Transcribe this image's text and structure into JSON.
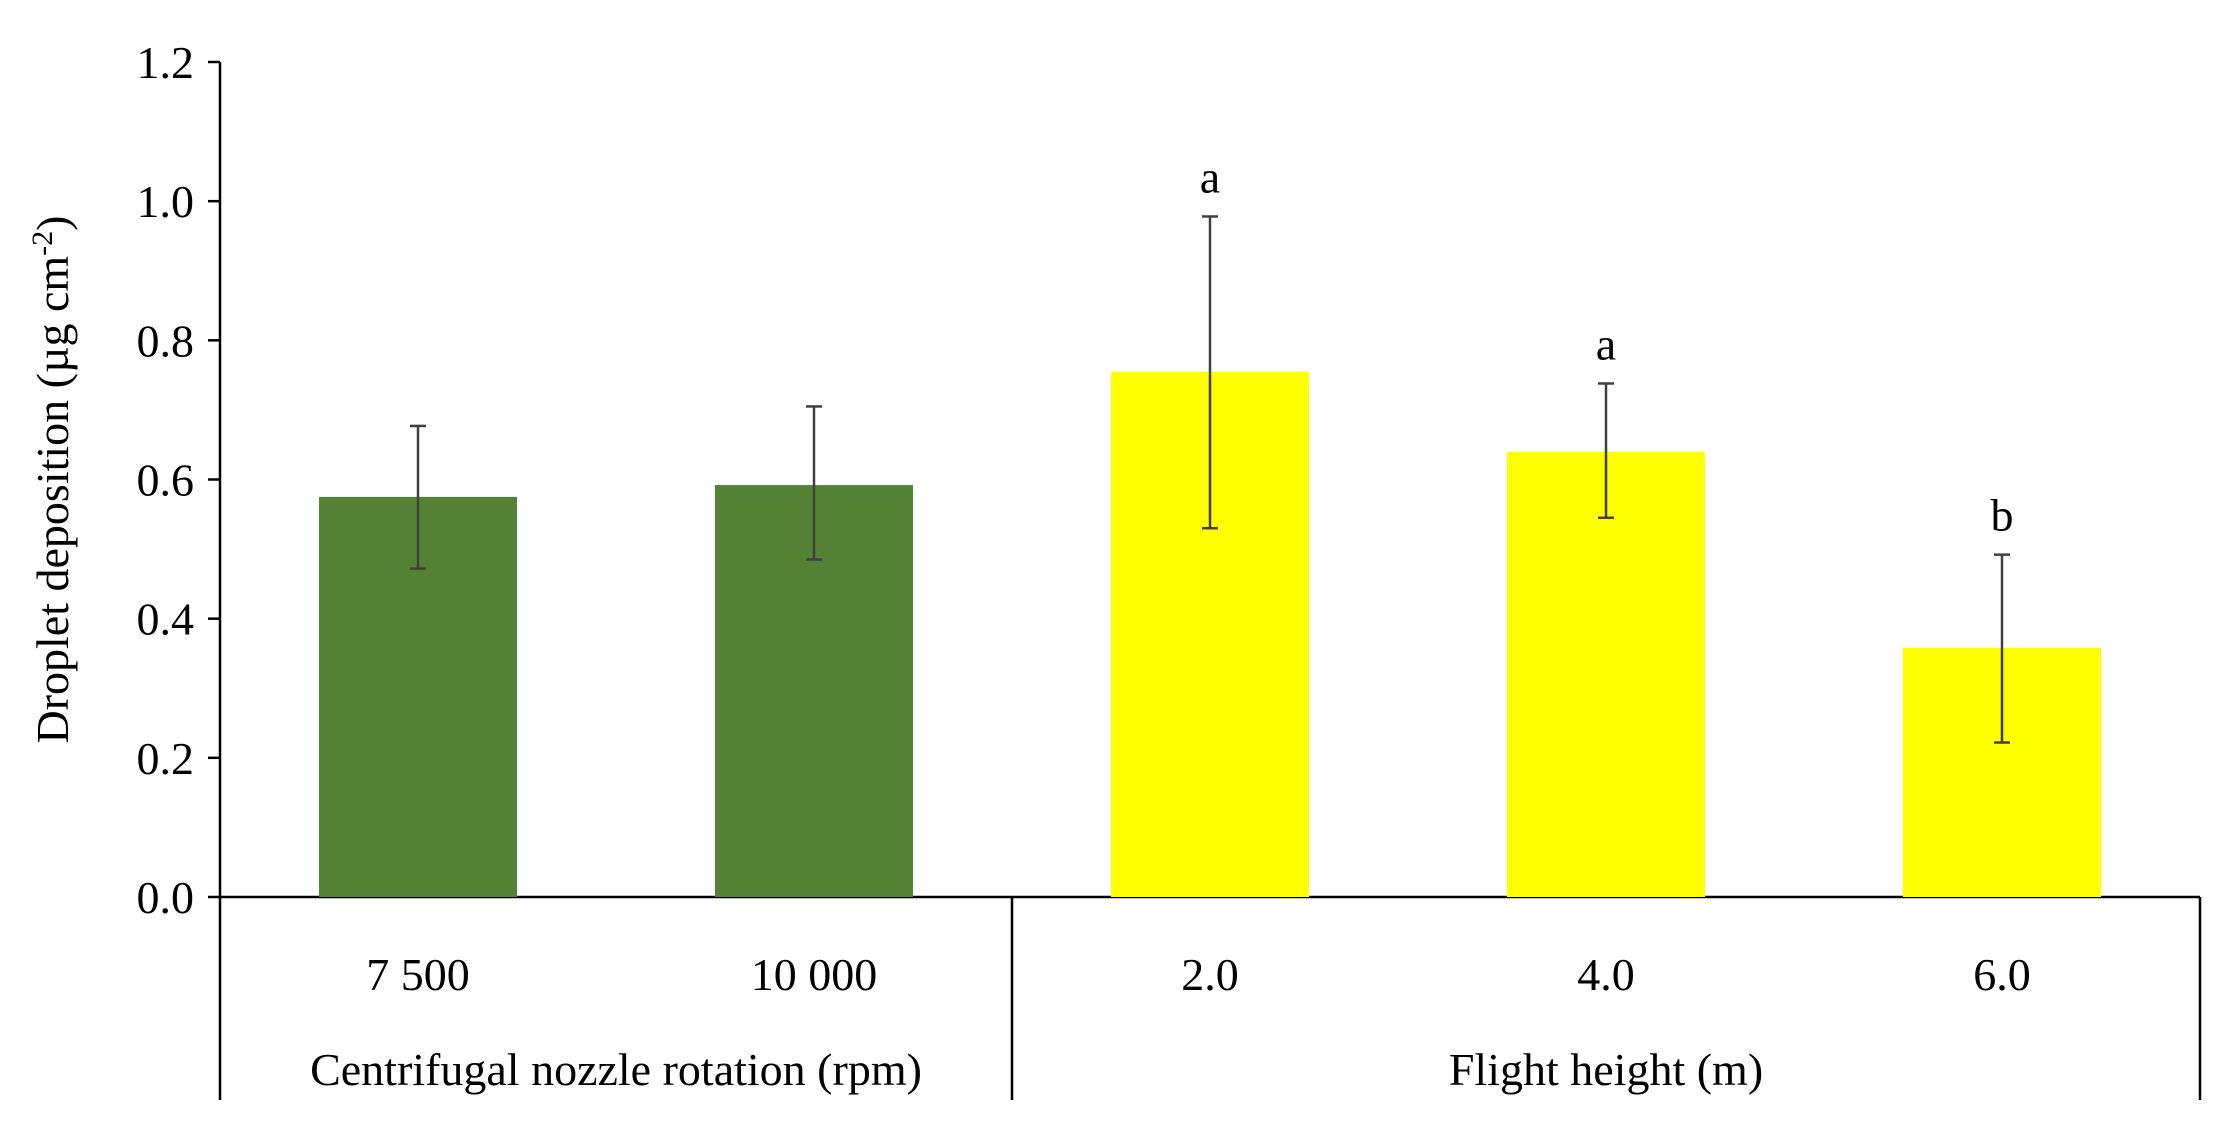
{
  "chart_data": {
    "type": "bar",
    "ylabel_main": "Droplet deposition (µg cm",
    "ylabel_sup": "-2",
    "ylabel_close": ")",
    "ylim": [
      0,
      1.2
    ],
    "yticks": [
      "0.0",
      "0.2",
      "0.4",
      "0.6",
      "0.8",
      "1.0",
      "1.2"
    ],
    "ytick_values": [
      0,
      0.2,
      0.4,
      0.6,
      0.8,
      1.0,
      1.2
    ],
    "categories": [
      "7 500",
      "10 000",
      "2.0",
      "4.0",
      "6.0"
    ],
    "values": [
      0.575,
      0.592,
      0.755,
      0.64,
      0.358
    ],
    "error_low": [
      0.472,
      0.485,
      0.53,
      0.545,
      0.222
    ],
    "error_high": [
      0.677,
      0.705,
      0.978,
      0.738,
      0.492
    ],
    "significance": [
      "",
      "",
      "a",
      "a",
      "b"
    ],
    "bar_colors": [
      "#548235",
      "#548235",
      "#ffff00",
      "#ffff00",
      "#ffff00"
    ],
    "groups": [
      {
        "label": "Centrifugal nozzle rotation (rpm)",
        "start": 0,
        "end": 1
      },
      {
        "label": "Flight height (m)",
        "start": 2,
        "end": 4
      }
    ],
    "grid": false,
    "legend": "none"
  }
}
